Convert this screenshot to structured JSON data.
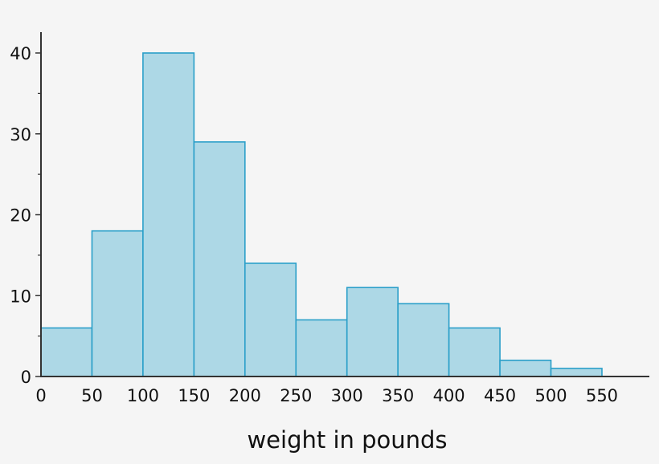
{
  "chart_data": {
    "type": "bar",
    "subtype": "histogram",
    "title": "",
    "xlabel": "weight in pounds",
    "ylabel": "",
    "bin_edges": [
      0,
      50,
      100,
      150,
      200,
      250,
      300,
      350,
      400,
      450,
      500,
      550
    ],
    "categories": [
      "0-50",
      "50-100",
      "100-150",
      "150-200",
      "200-250",
      "250-300",
      "300-350",
      "350-400",
      "400-450",
      "450-500",
      "500-550"
    ],
    "values": [
      6,
      18,
      40,
      29,
      14,
      7,
      11,
      9,
      6,
      2,
      1
    ],
    "x_ticks": [
      "0",
      "50",
      "100",
      "150",
      "200",
      "250",
      "300",
      "350",
      "400",
      "450",
      "500",
      "550"
    ],
    "y_ticks": [
      "0",
      "10",
      "20",
      "30",
      "40"
    ],
    "y_minor_ticks": [
      5,
      15,
      25,
      35
    ],
    "xlim": [
      0,
      600
    ],
    "ylim": [
      0,
      42
    ],
    "grid": false,
    "legend": null,
    "colors": {
      "bar_fill": "#add8e6",
      "bar_edge": "#2a9fc9",
      "axis": "#333333",
      "background": "#f5f5f5"
    }
  }
}
